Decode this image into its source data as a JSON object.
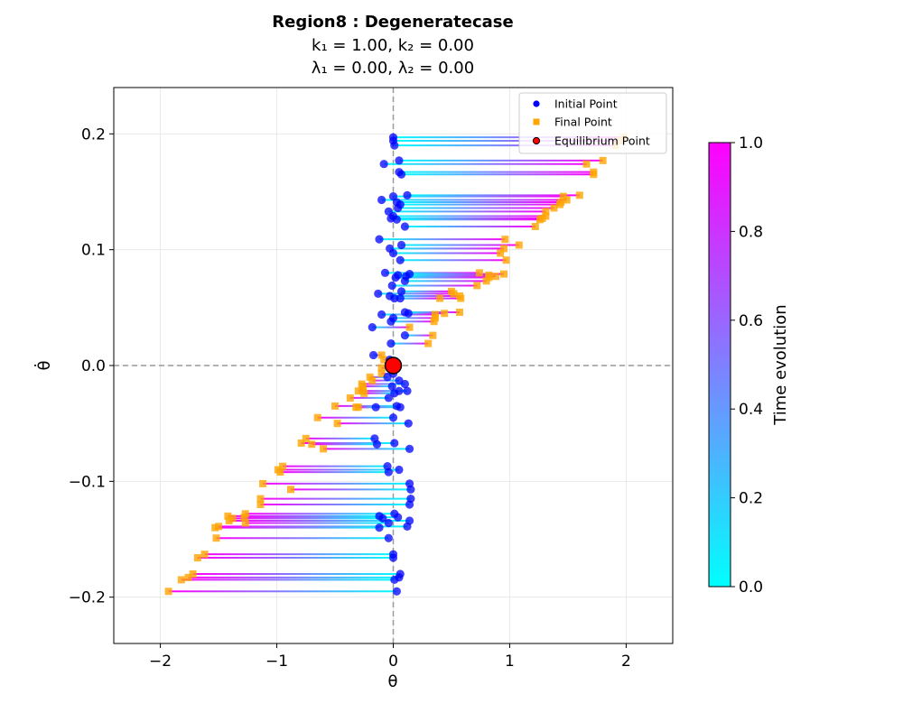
{
  "chart_data": {
    "type": "scatter",
    "title_line1": "Region8 : Degeneratecase",
    "title_line2": "k₁ = 1.00, k₂ = 0.00",
    "title_line3": "λ₁ = 0.00, λ₂ = 0.00",
    "xlabel": "θ",
    "ylabel": "θ̇",
    "xlim": [
      -2.4,
      2.4
    ],
    "ylim": [
      -0.24,
      0.24
    ],
    "xticks": [
      -2,
      -1,
      0,
      1,
      2
    ],
    "xtick_labels": [
      "−2",
      "−1",
      "0",
      "1",
      "2"
    ],
    "yticks": [
      -0.2,
      -0.1,
      0.0,
      0.1,
      0.2
    ],
    "ytick_labels": [
      "−0.2",
      "−0.1",
      "0.0",
      "0.1",
      "0.2"
    ],
    "grid": true,
    "reference_lines": {
      "x": 0,
      "y": 0
    },
    "legend": {
      "placement": "top-right",
      "entries": [
        {
          "label": "Initial Point",
          "color": "#0000ff",
          "marker": "circle"
        },
        {
          "label": "Final Point",
          "color": "#ffa500",
          "marker": "square"
        },
        {
          "label": "Equilibrium Point",
          "color": "#ff0000",
          "marker": "circle"
        }
      ]
    },
    "colorbar": {
      "label": "Time evolution",
      "range": [
        0.0,
        1.0
      ],
      "ticks": [
        0.0,
        0.2,
        0.4,
        0.6,
        0.8,
        1.0
      ],
      "tick_labels": [
        "0.0",
        "0.2",
        "0.4",
        "0.6",
        "0.8",
        "1.0"
      ],
      "colormap": "cool",
      "color_start": "#00ffff",
      "color_end": "#ff00ff"
    },
    "equilibrium_point": {
      "x": 0.0,
      "y": 0.0
    },
    "trajectories": [
      {
        "x0": 0.0,
        "y0": 0.197,
        "x1": 1.98,
        "y1": 0.197
      },
      {
        "x0": 0.0,
        "y0": 0.194,
        "x1": 1.94,
        "y1": 0.194
      },
      {
        "x0": 0.01,
        "y0": 0.19,
        "x1": 1.91,
        "y1": 0.19
      },
      {
        "x0": 0.05,
        "y0": 0.177,
        "x1": 1.8,
        "y1": 0.177
      },
      {
        "x0": -0.08,
        "y0": 0.174,
        "x1": 1.66,
        "y1": 0.174
      },
      {
        "x0": 0.05,
        "y0": 0.167,
        "x1": 1.72,
        "y1": 0.167
      },
      {
        "x0": 0.07,
        "y0": 0.165,
        "x1": 1.72,
        "y1": 0.165
      },
      {
        "x0": 0.12,
        "y0": 0.147,
        "x1": 1.6,
        "y1": 0.147
      },
      {
        "x0": 0.0,
        "y0": 0.146,
        "x1": 1.46,
        "y1": 0.146
      },
      {
        "x0": -0.1,
        "y0": 0.143,
        "x1": 1.49,
        "y1": 0.143
      },
      {
        "x0": 0.03,
        "y0": 0.141,
        "x1": 1.44,
        "y1": 0.141
      },
      {
        "x0": 0.06,
        "y0": 0.139,
        "x1": 1.43,
        "y1": 0.139
      },
      {
        "x0": 0.04,
        "y0": 0.136,
        "x1": 1.38,
        "y1": 0.136
      },
      {
        "x0": -0.04,
        "y0": 0.133,
        "x1": 1.31,
        "y1": 0.133
      },
      {
        "x0": 0.0,
        "y0": 0.129,
        "x1": 1.31,
        "y1": 0.129
      },
      {
        "x0": -0.02,
        "y0": 0.127,
        "x1": 1.28,
        "y1": 0.127
      },
      {
        "x0": 0.03,
        "y0": 0.126,
        "x1": 1.26,
        "y1": 0.126
      },
      {
        "x0": 0.1,
        "y0": 0.12,
        "x1": 1.22,
        "y1": 0.12
      },
      {
        "x0": -0.12,
        "y0": 0.109,
        "x1": 0.96,
        "y1": 0.109
      },
      {
        "x0": 0.07,
        "y0": 0.104,
        "x1": 1.08,
        "y1": 0.104
      },
      {
        "x0": -0.03,
        "y0": 0.101,
        "x1": 0.95,
        "y1": 0.101
      },
      {
        "x0": 0.0,
        "y0": 0.097,
        "x1": 0.92,
        "y1": 0.097
      },
      {
        "x0": 0.06,
        "y0": 0.091,
        "x1": 0.97,
        "y1": 0.091
      },
      {
        "x0": -0.07,
        "y0": 0.08,
        "x1": 0.74,
        "y1": 0.08
      },
      {
        "x0": 0.04,
        "y0": 0.078,
        "x1": 0.82,
        "y1": 0.078
      },
      {
        "x0": 0.14,
        "y0": 0.079,
        "x1": 0.95,
        "y1": 0.079
      },
      {
        "x0": 0.11,
        "y0": 0.077,
        "x1": 0.88,
        "y1": 0.077
      },
      {
        "x0": 0.02,
        "y0": 0.076,
        "x1": 0.82,
        "y1": 0.076
      },
      {
        "x0": 0.1,
        "y0": 0.073,
        "x1": 0.8,
        "y1": 0.073
      },
      {
        "x0": -0.01,
        "y0": 0.069,
        "x1": 0.72,
        "y1": 0.069
      },
      {
        "x0": 0.07,
        "y0": 0.064,
        "x1": 0.5,
        "y1": 0.064
      },
      {
        "x0": -0.13,
        "y0": 0.062,
        "x1": 0.52,
        "y1": 0.062
      },
      {
        "x0": -0.03,
        "y0": 0.06,
        "x1": 0.57,
        "y1": 0.06
      },
      {
        "x0": 0.06,
        "y0": 0.058,
        "x1": 0.58,
        "y1": 0.058
      },
      {
        "x0": 0.01,
        "y0": 0.058,
        "x1": 0.4,
        "y1": 0.058
      },
      {
        "x0": 0.1,
        "y0": 0.046,
        "x1": 0.57,
        "y1": 0.046
      },
      {
        "x0": 0.13,
        "y0": 0.045,
        "x1": 0.44,
        "y1": 0.045
      },
      {
        "x0": -0.1,
        "y0": 0.044,
        "x1": 0.36,
        "y1": 0.044
      },
      {
        "x0": 0.0,
        "y0": 0.041,
        "x1": 0.36,
        "y1": 0.041
      },
      {
        "x0": -0.02,
        "y0": 0.038,
        "x1": 0.35,
        "y1": 0.038
      },
      {
        "x0": -0.18,
        "y0": 0.033,
        "x1": 0.14,
        "y1": 0.033
      },
      {
        "x0": 0.1,
        "y0": 0.026,
        "x1": 0.34,
        "y1": 0.026
      },
      {
        "x0": -0.02,
        "y0": 0.019,
        "x1": 0.3,
        "y1": 0.019
      },
      {
        "x0": -0.17,
        "y0": 0.009,
        "x1": -0.1,
        "y1": 0.009
      },
      {
        "x0": -0.03,
        "y0": 0.005,
        "x1": -0.08,
        "y1": 0.005
      },
      {
        "x0": 0.03,
        "y0": -0.002,
        "x1": -0.1,
        "y1": -0.002
      },
      {
        "x0": 0.0,
        "y0": -0.007,
        "x1": -0.1,
        "y1": -0.007
      },
      {
        "x0": -0.05,
        "y0": -0.01,
        "x1": -0.2,
        "y1": -0.01
      },
      {
        "x0": 0.05,
        "y0": -0.013,
        "x1": -0.18,
        "y1": -0.013
      },
      {
        "x0": 0.1,
        "y0": -0.016,
        "x1": -0.27,
        "y1": -0.016
      },
      {
        "x0": -0.01,
        "y0": -0.018,
        "x1": -0.26,
        "y1": -0.018
      },
      {
        "x0": 0.05,
        "y0": -0.022,
        "x1": -0.26,
        "y1": -0.022
      },
      {
        "x0": 0.01,
        "y0": -0.024,
        "x1": -0.25,
        "y1": -0.024
      },
      {
        "x0": 0.12,
        "y0": -0.022,
        "x1": -0.3,
        "y1": -0.022
      },
      {
        "x0": -0.04,
        "y0": -0.028,
        "x1": -0.37,
        "y1": -0.028
      },
      {
        "x0": 0.03,
        "y0": -0.035,
        "x1": -0.5,
        "y1": -0.035
      },
      {
        "x0": 0.06,
        "y0": -0.036,
        "x1": -0.32,
        "y1": -0.036
      },
      {
        "x0": -0.15,
        "y0": -0.036,
        "x1": -0.3,
        "y1": -0.036
      },
      {
        "x0": 0.0,
        "y0": -0.045,
        "x1": -0.65,
        "y1": -0.045
      },
      {
        "x0": 0.13,
        "y0": -0.05,
        "x1": -0.48,
        "y1": -0.05
      },
      {
        "x0": -0.16,
        "y0": -0.063,
        "x1": -0.75,
        "y1": -0.063
      },
      {
        "x0": 0.01,
        "y0": -0.067,
        "x1": -0.79,
        "y1": -0.067
      },
      {
        "x0": -0.14,
        "y0": -0.068,
        "x1": -0.7,
        "y1": -0.068
      },
      {
        "x0": 0.14,
        "y0": -0.072,
        "x1": -0.6,
        "y1": -0.072
      },
      {
        "x0": -0.05,
        "y0": -0.087,
        "x1": -0.95,
        "y1": -0.087
      },
      {
        "x0": 0.05,
        "y0": -0.09,
        "x1": -0.99,
        "y1": -0.09
      },
      {
        "x0": -0.04,
        "y0": -0.092,
        "x1": -0.97,
        "y1": -0.092
      },
      {
        "x0": 0.14,
        "y0": -0.102,
        "x1": -1.12,
        "y1": -0.102
      },
      {
        "x0": 0.15,
        "y0": -0.107,
        "x1": -0.88,
        "y1": -0.107
      },
      {
        "x0": 0.15,
        "y0": -0.115,
        "x1": -1.14,
        "y1": -0.115
      },
      {
        "x0": 0.14,
        "y0": -0.12,
        "x1": -1.14,
        "y1": -0.12
      },
      {
        "x0": -0.12,
        "y0": -0.13,
        "x1": -1.42,
        "y1": -0.13
      },
      {
        "x0": 0.01,
        "y0": -0.128,
        "x1": -1.27,
        "y1": -0.128
      },
      {
        "x0": 0.04,
        "y0": -0.131,
        "x1": -1.28,
        "y1": -0.131
      },
      {
        "x0": -0.09,
        "y0": -0.132,
        "x1": -1.38,
        "y1": -0.132
      },
      {
        "x0": 0.14,
        "y0": -0.134,
        "x1": -1.41,
        "y1": -0.134
      },
      {
        "x0": -0.04,
        "y0": -0.136,
        "x1": -1.27,
        "y1": -0.136
      },
      {
        "x0": -0.12,
        "y0": -0.14,
        "x1": -1.53,
        "y1": -0.14
      },
      {
        "x0": 0.12,
        "y0": -0.139,
        "x1": -1.5,
        "y1": -0.139
      },
      {
        "x0": -0.04,
        "y0": -0.149,
        "x1": -1.52,
        "y1": -0.149
      },
      {
        "x0": 0.0,
        "y0": -0.163,
        "x1": -1.62,
        "y1": -0.163
      },
      {
        "x0": 0.0,
        "y0": -0.166,
        "x1": -1.68,
        "y1": -0.166
      },
      {
        "x0": 0.06,
        "y0": -0.18,
        "x1": -1.72,
        "y1": -0.18
      },
      {
        "x0": 0.05,
        "y0": -0.183,
        "x1": -1.76,
        "y1": -0.183
      },
      {
        "x0": 0.01,
        "y0": -0.185,
        "x1": -1.82,
        "y1": -0.185
      },
      {
        "x0": 0.03,
        "y0": -0.195,
        "x1": -1.93,
        "y1": -0.195
      }
    ]
  }
}
